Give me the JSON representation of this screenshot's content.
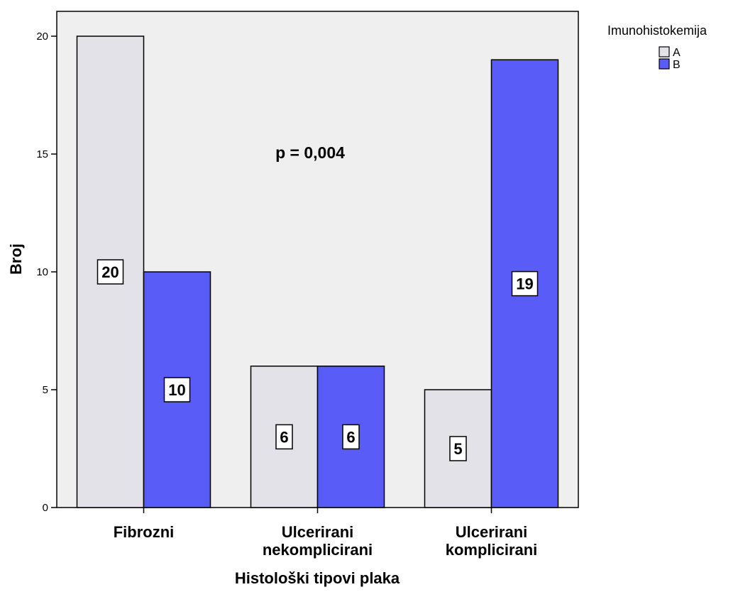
{
  "chart_data": {
    "type": "bar",
    "categories": [
      [
        "Fibrozni"
      ],
      [
        "Ulcerirani",
        "nekomplicirani"
      ],
      [
        "Ulcerirani",
        "komplicirani"
      ]
    ],
    "series": [
      {
        "name": "A",
        "values": [
          20,
          6,
          5
        ],
        "labels": [
          "20",
          "6",
          "5"
        ],
        "color": "#e3e2e8"
      },
      {
        "name": "B",
        "values": [
          10,
          6,
          19
        ],
        "labels": [
          "10",
          "6",
          "19"
        ],
        "color": "#5a5cf8"
      }
    ],
    "xlabel": "Histološki tipovi plaka",
    "ylabel": "Broj",
    "ylim": [
      0,
      20
    ],
    "yticks": [
      "0",
      "5",
      "10",
      "15",
      "20"
    ],
    "grid": false,
    "annotation": "p = 0,004",
    "legend": {
      "title": "Imunohistokemija",
      "placement": "top-right-outside"
    },
    "plot_background": "#efefef"
  }
}
